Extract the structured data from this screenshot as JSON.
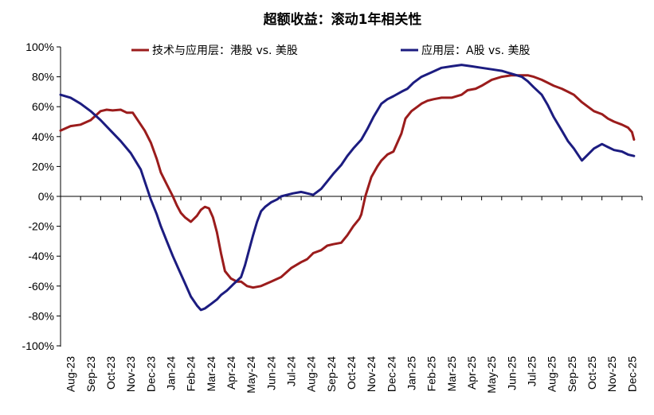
{
  "chart_data": {
    "type": "line",
    "title": "超额收益：滚动1年相关性",
    "xlabel": "",
    "ylabel": "",
    "ylim": [
      -100,
      100
    ],
    "y_ticks": [
      "100%",
      "80%",
      "60%",
      "40%",
      "20%",
      "0%",
      "-20%",
      "-40%",
      "-60%",
      "-80%",
      "-100%"
    ],
    "y_tick_values": [
      100,
      80,
      60,
      40,
      20,
      0,
      -20,
      -40,
      -60,
      -80,
      -100
    ],
    "categories": [
      "Aug-23",
      "Sep-23",
      "Oct-23",
      "Nov-23",
      "Dec-23",
      "Jan-24",
      "Feb-24",
      "Mar-24",
      "Apr-24",
      "May-24",
      "Jun-24",
      "Jul-24",
      "Aug-24",
      "Sep-24",
      "Oct-24",
      "Nov-24",
      "Dec-24",
      "Jan-25",
      "Feb-25",
      "Mar-25",
      "Apr-25",
      "May-25",
      "Jun-25",
      "Jul-25",
      "Aug-25",
      "Sep-25",
      "Oct-25",
      "Nov-25",
      "Dec-25"
    ],
    "legend_position": "top",
    "grid": false,
    "series": [
      {
        "name": "技术与应用层：港股 vs. 美股",
        "color": "#9b1c1c",
        "x": [
          0,
          0.5,
          1,
          1.5,
          2,
          2.3,
          2.6,
          3,
          3.3,
          3.6,
          4,
          4.2,
          4.5,
          4.8,
          5,
          5.3,
          5.6,
          5.8,
          6,
          6.2,
          6.5,
          6.8,
          7,
          7.2,
          7.4,
          7.6,
          7.8,
          8,
          8.2,
          8.5,
          8.8,
          9,
          9.3,
          9.6,
          10,
          10.5,
          11,
          11.5,
          12,
          12.3,
          12.6,
          13,
          13.3,
          13.6,
          14,
          14.3,
          14.6,
          14.9,
          15,
          15.2,
          15.5,
          15.8,
          16,
          16.3,
          16.6,
          17,
          17.2,
          17.5,
          17.8,
          18,
          18.3,
          18.6,
          19,
          19.5,
          20,
          20.3,
          20.7,
          21,
          21.5,
          22,
          22.5,
          23,
          23.3,
          23.6,
          24,
          24.3,
          24.6,
          25,
          25.3,
          25.6,
          26,
          26.3,
          26.6,
          27,
          27.3,
          27.6,
          28,
          28.3,
          28.5,
          28.6
        ],
        "values": [
          44,
          47,
          48,
          51,
          57,
          58,
          57.5,
          58,
          56,
          56,
          48,
          44,
          36,
          25,
          16,
          8,
          0,
          -6,
          -11,
          -14,
          -17,
          -13,
          -9,
          -7,
          -8,
          -14,
          -24,
          -38,
          -50,
          -55,
          -57,
          -57,
          -60,
          -61,
          -60,
          -57,
          -54,
          -48,
          -44,
          -42,
          -38,
          -36,
          -33,
          -32,
          -31,
          -26,
          -20,
          -15,
          -12,
          0,
          13,
          20,
          24,
          28,
          30,
          42,
          52,
          57,
          60,
          62,
          64,
          65,
          66,
          66,
          68,
          71,
          72,
          74,
          78,
          80,
          81,
          81,
          81,
          80,
          78,
          76,
          74,
          72,
          70,
          68,
          63,
          60,
          57,
          55,
          52,
          50,
          48,
          46,
          43,
          38
        ]
      },
      {
        "name": "应用层：A股 vs. 美股",
        "color": "#1c1c80",
        "x": [
          0,
          0.5,
          1,
          1.5,
          2,
          2.5,
          3,
          3.5,
          4,
          4.2,
          4.5,
          4.8,
          5,
          5.3,
          5.6,
          5.9,
          6.2,
          6.5,
          6.8,
          7,
          7.2,
          7.5,
          7.8,
          8,
          8.3,
          8.6,
          9,
          9.2,
          9.4,
          9.6,
          9.8,
          10,
          10.2,
          10.5,
          10.8,
          11,
          11.3,
          11.6,
          12,
          12.3,
          12.6,
          13,
          13.3,
          13.6,
          14,
          14.3,
          14.6,
          15,
          15.3,
          15.6,
          16,
          16.3,
          16.6,
          17,
          17.3,
          17.6,
          18,
          18.5,
          19,
          19.5,
          20,
          20.5,
          21,
          21.5,
          22,
          22.5,
          23,
          23.3,
          23.6,
          24,
          24.3,
          24.6,
          25,
          25.3,
          25.6,
          26,
          26.3,
          26.6,
          27,
          27.3,
          27.6,
          28,
          28.3,
          28.6
        ],
        "values": [
          68,
          66,
          62,
          57,
          51,
          44,
          37,
          29,
          18,
          10,
          -2,
          -12,
          -20,
          -30,
          -40,
          -49,
          -58,
          -67,
          -73,
          -76,
          -75,
          -72,
          -69,
          -66,
          -63,
          -59,
          -54,
          -46,
          -36,
          -26,
          -17,
          -10,
          -7,
          -4,
          -2,
          0,
          1,
          2,
          3,
          2,
          1,
          5,
          10,
          15,
          21,
          27,
          32,
          38,
          45,
          53,
          62,
          65,
          67,
          70,
          72,
          76,
          80,
          83,
          86,
          87,
          88,
          87,
          86,
          85,
          84,
          82,
          80,
          77,
          73,
          68,
          61,
          53,
          44,
          37,
          32,
          24,
          28,
          32,
          35,
          33,
          31,
          30,
          28,
          27
        ]
      }
    ]
  }
}
